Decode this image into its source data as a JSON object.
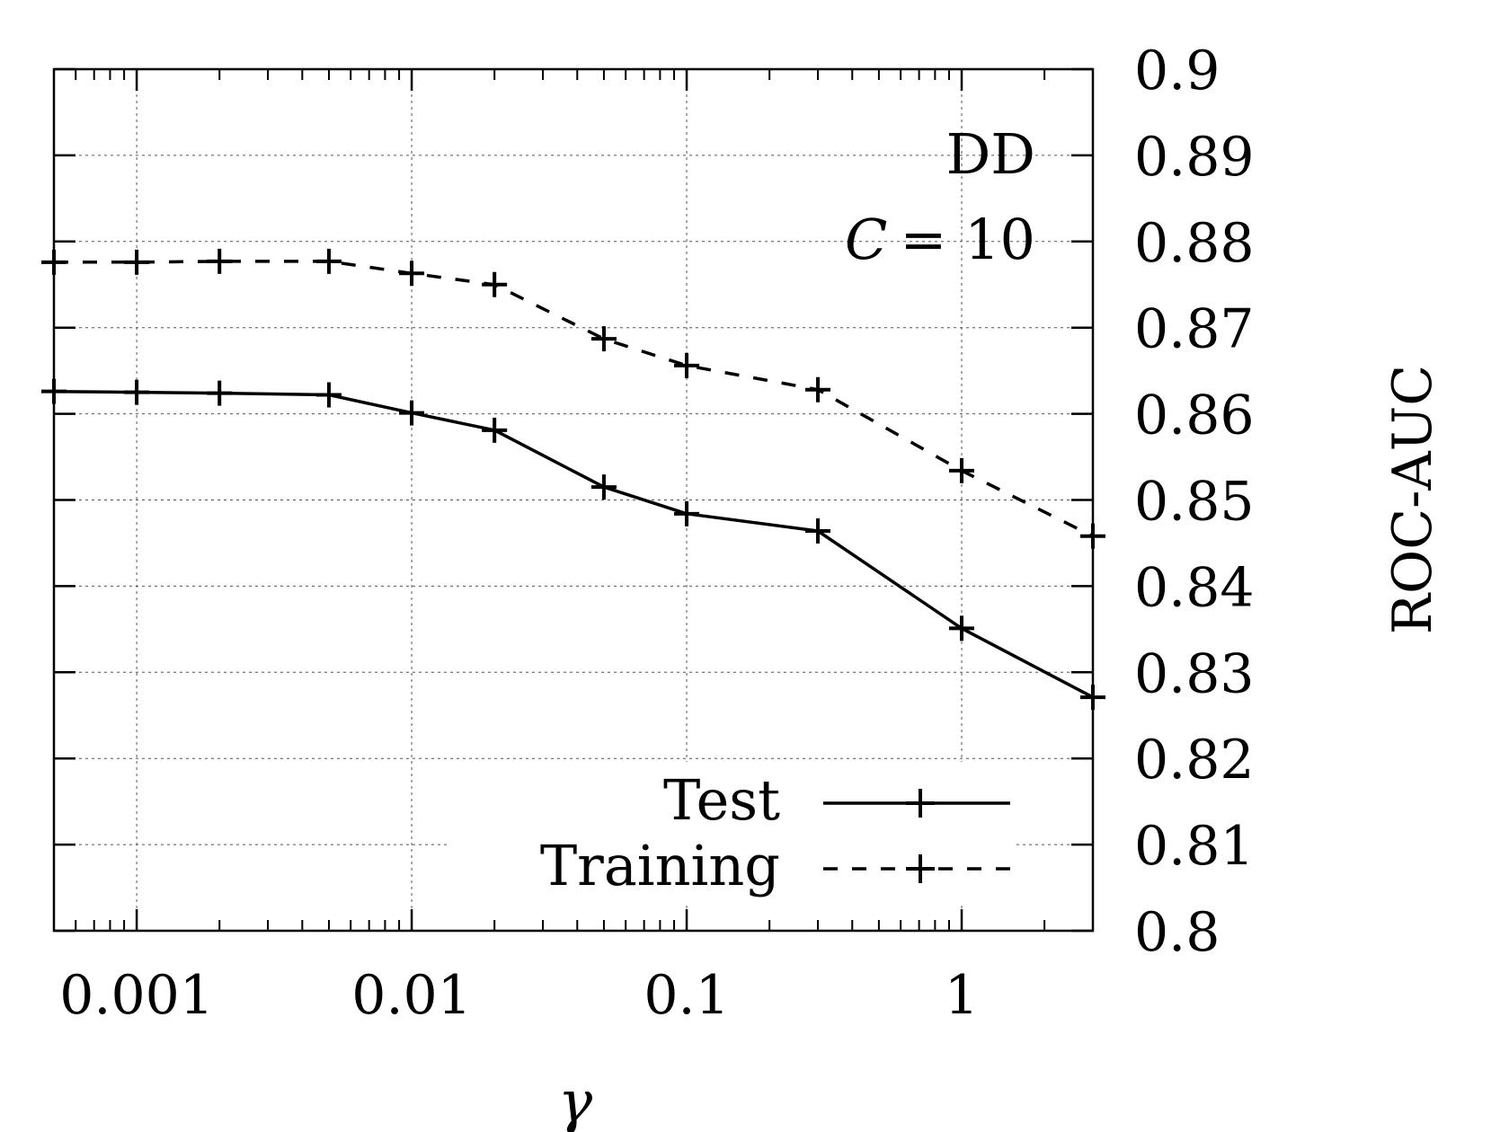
{
  "chart_data": {
    "type": "line",
    "x_scale": "log",
    "xlabel": "γ",
    "ylabel": "ROC-AUC",
    "xlim": [
      0.0005,
      3
    ],
    "ylim": [
      0.8,
      0.9
    ],
    "x_ticks": [
      0.001,
      0.01,
      0.1,
      1
    ],
    "x_tick_labels": [
      "0.001",
      "0.01",
      "0.1",
      "1"
    ],
    "y_ticks": [
      0.8,
      0.81,
      0.82,
      0.83,
      0.84,
      0.85,
      0.86,
      0.87,
      0.88,
      0.89,
      0.9
    ],
    "y_tick_labels": [
      "0.8",
      "0.81",
      "0.82",
      "0.83",
      "0.84",
      "0.85",
      "0.86",
      "0.87",
      "0.88",
      "0.89",
      "0.9"
    ],
    "y_axis_side": "right",
    "grid": true,
    "legend_position": "bottom-right",
    "annotations": {
      "dataset": "DD",
      "c_symbol": "C",
      "c_equals": "= 10"
    },
    "x": [
      0.0005,
      0.001,
      0.002,
      0.005,
      0.01,
      0.02,
      0.05,
      0.1,
      0.3,
      1,
      3
    ],
    "series": [
      {
        "name": "Test",
        "style": "solid",
        "color": "#000000",
        "values": [
          0.8626,
          0.8625,
          0.8624,
          0.8622,
          0.8601,
          0.8581,
          0.8515,
          0.8484,
          0.8464,
          0.8351,
          0.8271
        ]
      },
      {
        "name": "Training",
        "style": "dashed",
        "color": "#000000",
        "values": [
          0.8776,
          0.8776,
          0.8777,
          0.8777,
          0.8763,
          0.875,
          0.8687,
          0.8656,
          0.8628,
          0.8534,
          0.8458
        ]
      }
    ]
  }
}
